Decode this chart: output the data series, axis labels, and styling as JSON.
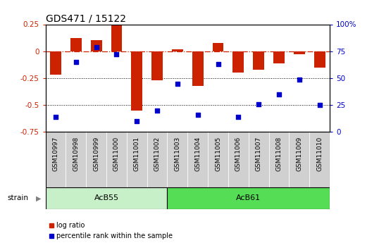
{
  "title": "GDS471 / 15122",
  "samples": [
    "GSM10997",
    "GSM10998",
    "GSM10999",
    "GSM11000",
    "GSM11001",
    "GSM11002",
    "GSM11003",
    "GSM11004",
    "GSM11005",
    "GSM11006",
    "GSM11007",
    "GSM11008",
    "GSM11009",
    "GSM11010"
  ],
  "log_ratio": [
    -0.22,
    0.12,
    0.1,
    0.245,
    -0.55,
    -0.27,
    0.015,
    -0.32,
    0.075,
    -0.2,
    -0.17,
    -0.11,
    -0.03,
    -0.15
  ],
  "percentile": [
    14,
    65,
    79,
    72,
    10,
    20,
    45,
    16,
    63,
    14,
    26,
    35,
    49,
    25
  ],
  "strains": [
    {
      "label": "AcB55",
      "start": 0,
      "end": 5
    },
    {
      "label": "AcB61",
      "start": 6,
      "end": 13
    }
  ],
  "strain_split": 5.5,
  "bar_color": "#cc2200",
  "dot_color": "#0000cc",
  "ylim_left": [
    -0.75,
    0.25
  ],
  "ylim_right": [
    0,
    100
  ],
  "yticks_left": [
    -0.75,
    -0.5,
    -0.25,
    0,
    0.25
  ],
  "yticks_right": [
    0,
    25,
    50,
    75,
    100
  ],
  "ytick_labels_left": [
    "-0.75",
    "-0.5",
    "-0.25",
    "0",
    "0.25"
  ],
  "ytick_labels_right": [
    "0",
    "25",
    "50",
    "75",
    "100%"
  ],
  "dotted_lines": [
    -0.25,
    -0.5
  ],
  "legend_labels": [
    "log ratio",
    "percentile rank within the sample"
  ],
  "strain_label": "strain",
  "background_color": "#ffffff",
  "tick_label_color_left": "#cc2200",
  "tick_label_color_right": "#0000cc",
  "strain_color_1": "#c8f0c8",
  "strain_color_2": "#55dd55",
  "sample_bg_color": "#d0d0d0"
}
